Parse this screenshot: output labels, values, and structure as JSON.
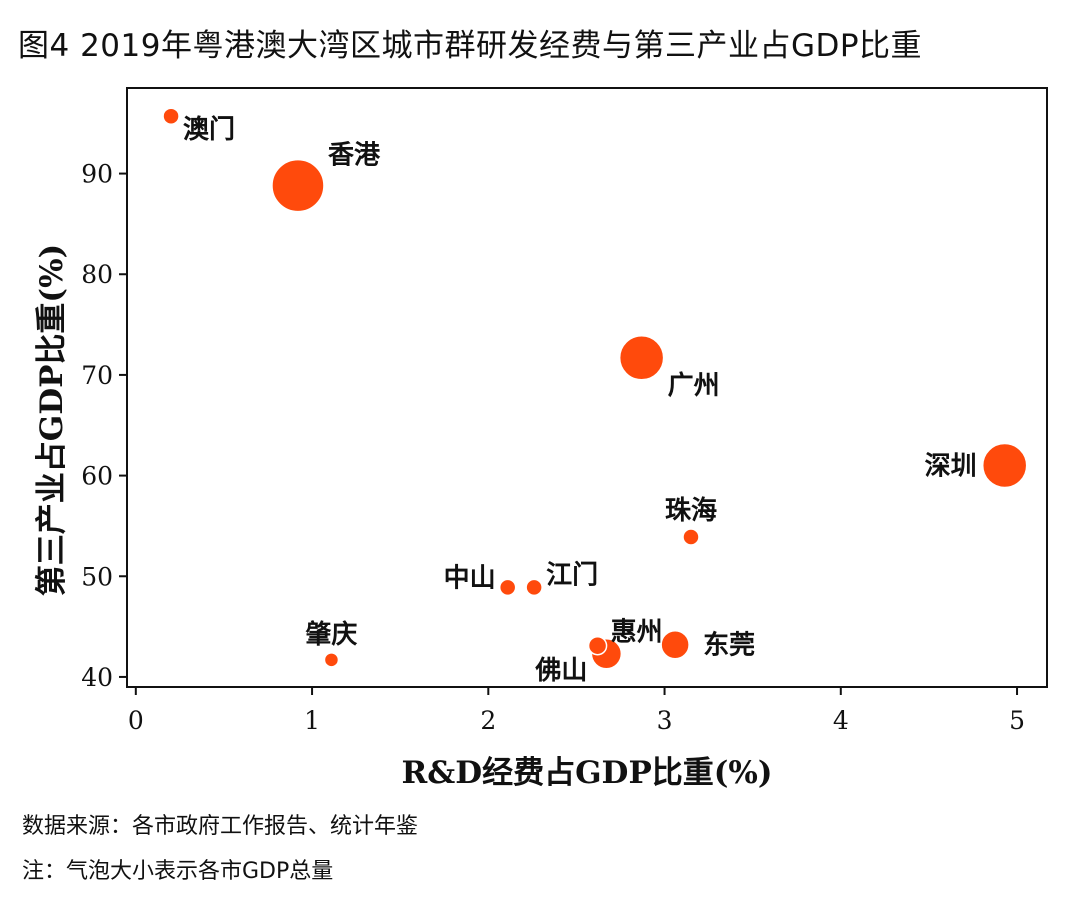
{
  "figure": {
    "title": "图4  2019年粤港澳大湾区城市群研发经费与第三产业占GDP比重",
    "source_note": "数据来源：各市政府工作报告、统计年鉴",
    "bubble_note": "注：气泡大小表示各市GDP总量"
  },
  "colors": {
    "bubble": "#FF4A0C",
    "bubble_edge": "#ffffff",
    "axis": "#111111"
  },
  "chart_data": {
    "type": "scatter",
    "xlabel": "R&D经费占GDP比重(%)",
    "ylabel": "第三产业占GDP比重(%)",
    "xlim": [
      -0.05,
      5.17
    ],
    "ylim": [
      39.0,
      98.5
    ],
    "xticks": [
      0,
      1,
      2,
      3,
      4,
      5
    ],
    "yticks": [
      40,
      50,
      60,
      70,
      80,
      90
    ],
    "points": [
      {
        "city": "澳门",
        "x": 0.2,
        "y": 95.7,
        "size": 8,
        "label_pos": "right-below"
      },
      {
        "city": "香港",
        "x": 0.92,
        "y": 88.8,
        "size": 26,
        "label_pos": "right-above"
      },
      {
        "city": "广州",
        "x": 2.87,
        "y": 71.7,
        "size": 22,
        "label_pos": "right-below"
      },
      {
        "city": "深圳",
        "x": 4.93,
        "y": 61.0,
        "size": 22,
        "label_pos": "left"
      },
      {
        "city": "珠海",
        "x": 3.15,
        "y": 53.9,
        "size": 8,
        "label_pos": "above"
      },
      {
        "city": "中山",
        "x": 2.11,
        "y": 48.9,
        "size": 8,
        "label_pos": "left-above"
      },
      {
        "city": "江门",
        "x": 2.26,
        "y": 48.9,
        "size": 8,
        "label_pos": "right-above"
      },
      {
        "city": "惠州",
        "x": 2.62,
        "y": 43.1,
        "size": 9,
        "label_pos": "right-above"
      },
      {
        "city": "佛山",
        "x": 2.67,
        "y": 42.3,
        "size": 15,
        "label_pos": "left-below"
      },
      {
        "city": "东莞",
        "x": 3.06,
        "y": 43.2,
        "size": 14,
        "label_pos": "right"
      },
      {
        "city": "肇庆",
        "x": 1.11,
        "y": 41.7,
        "size": 7,
        "label_pos": "above"
      }
    ]
  }
}
